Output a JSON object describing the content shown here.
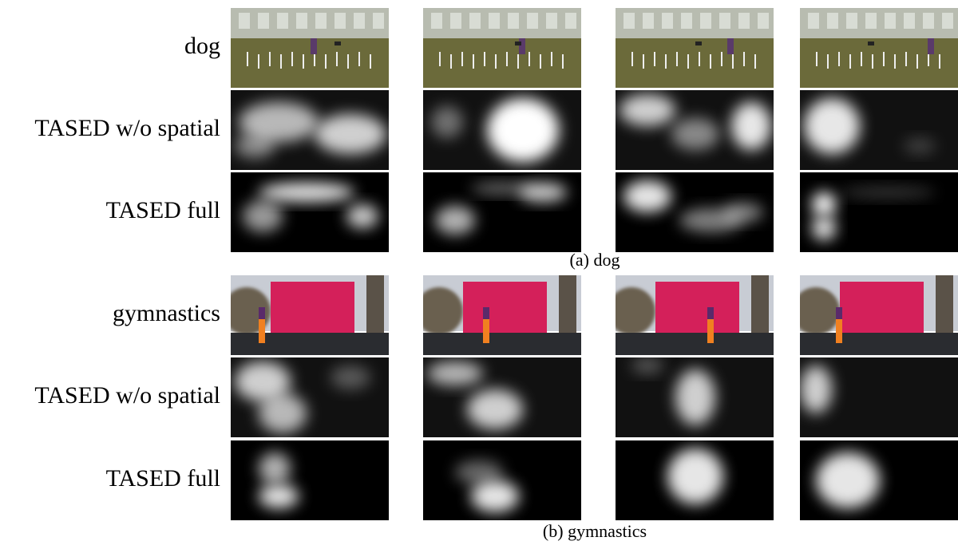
{
  "sections": [
    {
      "caption": "(a) dog",
      "rows": [
        "dog",
        "TASED w/o spatial",
        "TASED full"
      ]
    },
    {
      "caption": "(b) gymnastics",
      "rows": [
        "gymnastics",
        "TASED w/o spatial",
        "TASED full"
      ]
    }
  ]
}
